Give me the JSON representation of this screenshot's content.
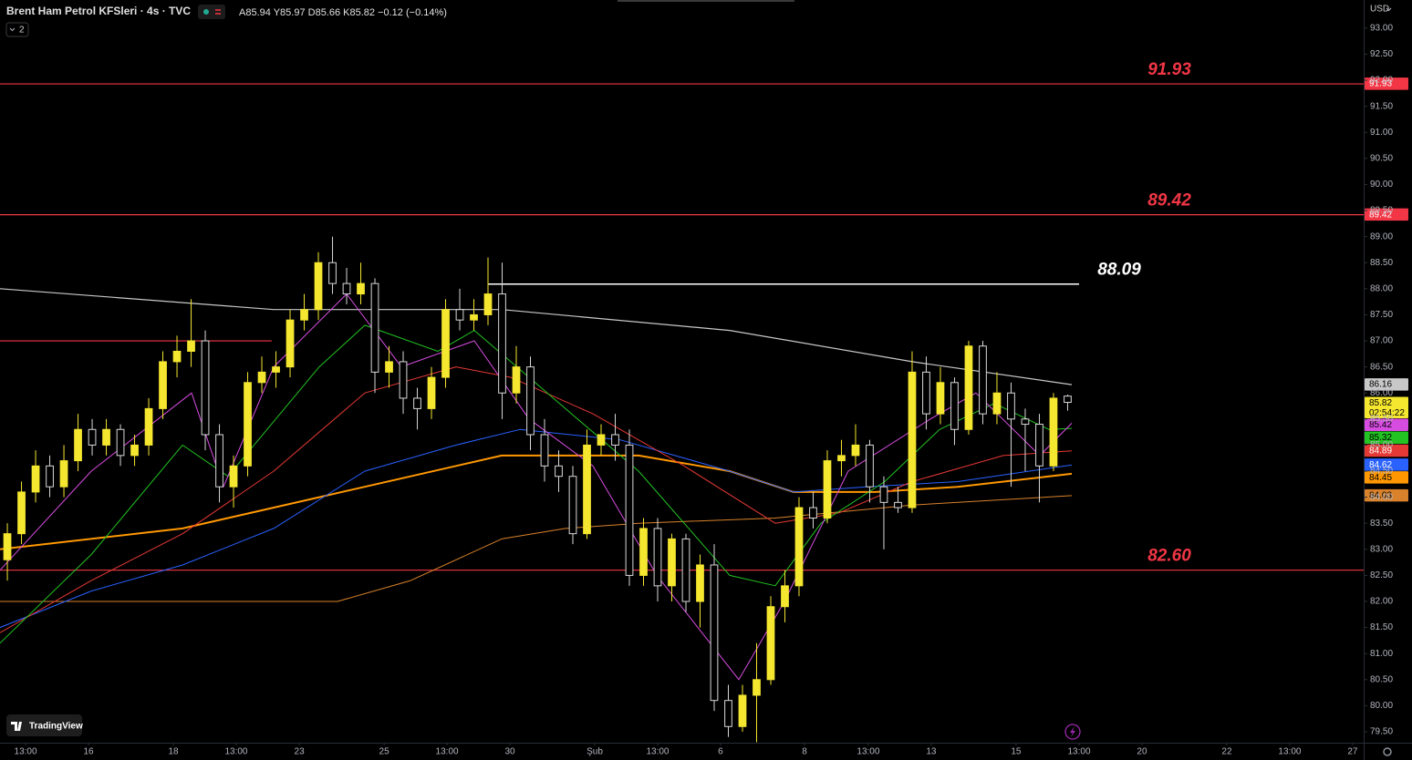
{
  "chart_data": {
    "type": "candlestick",
    "title": "Brent Ham Petrol KFSleri · 4s · TVC",
    "ohlc_text": "A85.94 Y85.97 D85.66 K85.82 −0.12 (−0.14%)",
    "indicator_count": "2",
    "currency": "USD",
    "brand": "TradingView",
    "countdown": "02:54:22",
    "up_color": "#f5e62f",
    "down_color": "#d8d8d8",
    "grid": false,
    "xlim": [
      -0.52,
      95.94
    ],
    "ylim": [
      79.29,
      93.54
    ],
    "xticks": [
      {
        "value": 1.29,
        "label": "13:00"
      },
      {
        "value": 5.74,
        "label": "16"
      },
      {
        "value": 11.74,
        "label": "18"
      },
      {
        "value": 16.19,
        "label": "13:00"
      },
      {
        "value": 20.65,
        "label": "23"
      },
      {
        "value": 26.65,
        "label": "25"
      },
      {
        "value": 31.1,
        "label": "13:00"
      },
      {
        "value": 35.55,
        "label": "30"
      },
      {
        "value": 41.55,
        "label": "Şub"
      },
      {
        "value": 46.0,
        "label": "13:00"
      },
      {
        "value": 50.45,
        "label": "6"
      },
      {
        "value": 56.39,
        "label": "8"
      },
      {
        "value": 60.9,
        "label": "13:00"
      },
      {
        "value": 65.35,
        "label": "13"
      },
      {
        "value": 71.35,
        "label": "15"
      },
      {
        "value": 75.81,
        "label": "13:00"
      },
      {
        "value": 80.26,
        "label": "20"
      },
      {
        "value": 86.26,
        "label": "22"
      },
      {
        "value": 90.71,
        "label": "13:00"
      },
      {
        "value": 95.16,
        "label": "27"
      }
    ],
    "yticks": [
      {
        "value": 93,
        "label": "93.00"
      },
      {
        "value": 92.5,
        "label": "92.50"
      },
      {
        "value": 92,
        "label": "92.00"
      },
      {
        "value": 91.5,
        "label": "91.50"
      },
      {
        "value": 91,
        "label": "91.00"
      },
      {
        "value": 90.5,
        "label": "90.50"
      },
      {
        "value": 90,
        "label": "90.00"
      },
      {
        "value": 89.5,
        "label": "89.50"
      },
      {
        "value": 89,
        "label": "89.00"
      },
      {
        "value": 88.5,
        "label": "88.50"
      },
      {
        "value": 88,
        "label": "88.00"
      },
      {
        "value": 87.5,
        "label": "87.50"
      },
      {
        "value": 87,
        "label": "87.00"
      },
      {
        "value": 86.5,
        "label": "86.50"
      },
      {
        "value": 86,
        "label": "86.00"
      },
      {
        "value": 85.5,
        "label": "85.50"
      },
      {
        "value": 85,
        "label": "85.00"
      },
      {
        "value": 84.5,
        "label": "84.50"
      },
      {
        "value": 84,
        "label": "84.00"
      },
      {
        "value": 83.5,
        "label": "83.50"
      },
      {
        "value": 83,
        "label": "83.00"
      },
      {
        "value": 82.5,
        "label": "82.50"
      },
      {
        "value": 82,
        "label": "82.00"
      },
      {
        "value": 81.5,
        "label": "81.50"
      },
      {
        "value": 81,
        "label": "81.00"
      },
      {
        "value": 80.5,
        "label": "80.50"
      },
      {
        "value": 80,
        "label": "80.00"
      },
      {
        "value": 79.5,
        "label": "79.50"
      }
    ],
    "x": [
      0,
      1,
      2,
      3,
      4,
      5,
      6,
      7,
      8,
      9,
      10,
      11,
      12,
      13,
      14,
      15,
      16,
      17,
      18,
      19,
      20,
      21,
      22,
      23,
      24,
      25,
      26,
      27,
      28,
      29,
      30,
      31,
      32,
      33,
      34,
      35,
      36,
      37,
      38,
      39,
      40,
      41,
      42,
      43,
      44,
      45,
      46,
      47,
      48,
      49,
      50,
      51,
      52,
      53,
      54,
      55,
      56,
      57,
      58,
      59,
      60,
      61,
      62,
      63,
      64,
      65,
      66,
      67,
      68,
      69,
      70,
      71,
      72,
      73,
      74,
      75
    ],
    "open": [
      82.8,
      83.3,
      84.1,
      84.6,
      84.2,
      84.7,
      85.3,
      85.0,
      85.3,
      84.8,
      85.0,
      85.7,
      86.6,
      86.8,
      87.0,
      85.2,
      84.2,
      84.6,
      86.2,
      86.4,
      86.5,
      87.4,
      87.6,
      88.5,
      88.1,
      87.9,
      88.1,
      86.4,
      86.6,
      85.9,
      85.7,
      86.3,
      87.6,
      87.4,
      87.5,
      87.9,
      86.0,
      86.5,
      85.2,
      84.6,
      84.4,
      83.3,
      85.0,
      85.2,
      85.0,
      82.5,
      83.4,
      82.3,
      83.2,
      82.0,
      82.7,
      80.1,
      79.6,
      80.2,
      80.5,
      81.9,
      82.3,
      83.8,
      83.6,
      84.7,
      84.8,
      85.0,
      84.2,
      83.9,
      83.8,
      86.4,
      85.6,
      86.2,
      85.3,
      86.9,
      85.6,
      86.0,
      85.5,
      85.4,
      84.6,
      85.94
    ],
    "high": [
      83.5,
      84.3,
      84.9,
      84.8,
      85.0,
      85.6,
      85.5,
      85.5,
      85.4,
      85.2,
      85.9,
      86.8,
      87.1,
      87.8,
      87.2,
      85.4,
      84.8,
      86.4,
      86.7,
      86.8,
      87.6,
      87.9,
      88.7,
      89.0,
      88.4,
      88.5,
      88.2,
      86.9,
      86.8,
      86.1,
      86.5,
      87.8,
      88.0,
      87.8,
      88.6,
      88.5,
      86.9,
      86.7,
      85.5,
      84.9,
      84.6,
      85.3,
      85.4,
      85.6,
      85.3,
      83.6,
      83.6,
      83.3,
      83.3,
      82.9,
      83.1,
      80.4,
      80.4,
      81.2,
      82.1,
      82.6,
      84.0,
      84.1,
      84.9,
      85.1,
      85.4,
      85.1,
      84.4,
      84.2,
      86.8,
      86.7,
      86.5,
      86.3,
      87.0,
      87.0,
      86.4,
      86.2,
      85.7,
      85.6,
      86.0,
      85.97
    ],
    "low": [
      82.4,
      83.1,
      83.9,
      84.0,
      84.0,
      84.5,
      84.8,
      84.8,
      84.6,
      84.6,
      84.8,
      85.5,
      86.3,
      86.5,
      84.9,
      83.9,
      83.8,
      84.4,
      86.0,
      86.1,
      86.3,
      87.2,
      87.4,
      87.9,
      87.7,
      87.7,
      86.0,
      86.1,
      85.6,
      85.3,
      85.5,
      86.1,
      87.2,
      87.2,
      87.3,
      85.5,
      85.8,
      84.9,
      84.3,
      84.1,
      83.1,
      83.2,
      84.8,
      84.7,
      82.3,
      82.3,
      82.0,
      82.0,
      81.8,
      81.5,
      79.9,
      79.4,
      79.5,
      79.3,
      80.4,
      81.6,
      82.1,
      83.4,
      83.5,
      84.4,
      84.6,
      83.9,
      83.0,
      83.7,
      83.7,
      85.3,
      85.4,
      85.0,
      85.2,
      85.4,
      85.4,
      84.2,
      84.5,
      83.9,
      84.5,
      85.66
    ],
    "close": [
      83.3,
      84.1,
      84.6,
      84.2,
      84.7,
      85.3,
      85.0,
      85.3,
      84.8,
      85.0,
      85.7,
      86.6,
      86.8,
      87.0,
      85.2,
      84.2,
      84.6,
      86.2,
      86.4,
      86.5,
      87.4,
      87.6,
      88.5,
      88.1,
      87.9,
      88.1,
      86.4,
      86.6,
      85.9,
      85.7,
      86.3,
      87.6,
      87.4,
      87.5,
      87.9,
      86.0,
      86.5,
      85.2,
      84.6,
      84.4,
      83.3,
      85.0,
      85.2,
      85.0,
      82.5,
      83.4,
      82.3,
      83.2,
      82.0,
      82.7,
      80.1,
      79.6,
      80.2,
      80.5,
      81.9,
      82.3,
      83.8,
      83.6,
      84.7,
      84.8,
      85.0,
      84.2,
      83.9,
      83.8,
      86.4,
      85.6,
      86.2,
      85.3,
      86.9,
      85.6,
      86.0,
      85.5,
      85.4,
      84.6,
      85.9,
      85.82
    ],
    "series": [
      {
        "color": "#c8c8c8",
        "tag_text": "#000000",
        "width": 1.2,
        "x": [
          -0.52,
          18.84,
          34.97,
          51.1,
          64,
          75.29
        ],
        "values": [
          88.0,
          87.6,
          87.6,
          87.2,
          86.6,
          86.16
        ]
      },
      {
        "color": "#ff9800",
        "tag_text": "#000000",
        "width": 2,
        "x": [
          -0.52,
          12.39,
          22.06,
          31.74,
          34.97,
          44.65,
          51.1,
          55.61,
          61.42,
          67.23,
          75.29
        ],
        "values": [
          83.0,
          83.4,
          84.0,
          84.6,
          84.8,
          84.8,
          84.5,
          84.1,
          84.1,
          84.2,
          84.45
        ]
      },
      {
        "color": "#d9822b",
        "tag_text": "#000000",
        "width": 1,
        "x": [
          -0.52,
          12.39,
          23.35,
          28.52,
          34.97,
          39.48,
          44.65,
          54.32,
          64,
          75.29
        ],
        "values": [
          82.0,
          82.0,
          82.0,
          82.4,
          83.2,
          83.4,
          83.5,
          83.6,
          83.85,
          84.03
        ]
      },
      {
        "color": "#2962ff",
        "tag_text": "#ffffff",
        "width": 1,
        "x": [
          -0.52,
          5.94,
          12.39,
          18.84,
          25.29,
          31.74,
          36.26,
          43.35,
          51.1,
          55.61,
          60.77,
          67.23,
          75.29
        ],
        "values": [
          81.5,
          82.2,
          82.7,
          83.4,
          84.5,
          85.0,
          85.3,
          85.1,
          84.5,
          84.1,
          84.2,
          84.3,
          84.62
        ]
      },
      {
        "color": "#e53935",
        "tag_text": "#ffffff",
        "width": 1,
        "x": [
          -0.52,
          5.94,
          12.39,
          18.84,
          25.29,
          31.74,
          35.61,
          41.42,
          47.87,
          54.32,
          58.84,
          64,
          70.45,
          75.29
        ],
        "values": [
          81.4,
          82.4,
          83.3,
          84.5,
          86.0,
          86.5,
          86.3,
          85.6,
          84.6,
          83.5,
          83.7,
          84.3,
          84.8,
          84.89
        ]
      },
      {
        "color": "#22c322",
        "tag_text": "#000000",
        "width": 1,
        "x": [
          -0.52,
          5.94,
          12.39,
          15.61,
          22.06,
          25.29,
          30.45,
          33.03,
          35.61,
          39.48,
          44.65,
          51.1,
          54.32,
          57.55,
          62.06,
          65.94,
          69.81,
          73.68,
          75.29
        ],
        "values": [
          81.2,
          82.9,
          85.0,
          84.4,
          86.5,
          87.3,
          86.8,
          87.2,
          86.6,
          85.7,
          84.5,
          82.5,
          82.3,
          83.5,
          84.3,
          85.3,
          85.8,
          85.3,
          85.32
        ]
      },
      {
        "color": "#d64ce0",
        "tag_text": "#000000",
        "width": 1,
        "x": [
          -0.52,
          5.94,
          13.03,
          15.29,
          18.84,
          24,
          27.87,
          33.03,
          36.9,
          41.42,
          45.94,
          51.74,
          54.97,
          59.48,
          65.29,
          68.52,
          73.03,
          75.29
        ],
        "values": [
          82.6,
          84.5,
          86.0,
          84.2,
          86.5,
          87.9,
          86.5,
          87.0,
          85.5,
          84.6,
          82.5,
          80.5,
          82.0,
          84.5,
          85.5,
          86.0,
          84.8,
          85.42
        ]
      }
    ],
    "levels": [
      {
        "value": 91.93,
        "label": "91.93",
        "color": "#f23645",
        "tag": true
      },
      {
        "value": 89.42,
        "label": "89.42",
        "color": "#f23645",
        "tag": true
      },
      {
        "value": 82.6,
        "label": "82.60",
        "color": "#f23645",
        "tag": false
      },
      {
        "value": 88.09,
        "label": "88.09",
        "color": "#ffffff",
        "tag": false,
        "from": 34,
        "to": 75.81
      },
      {
        "value": 87.0,
        "color": "#f23645",
        "tag": false,
        "from": -0.52,
        "to": 18.7
      }
    ]
  }
}
